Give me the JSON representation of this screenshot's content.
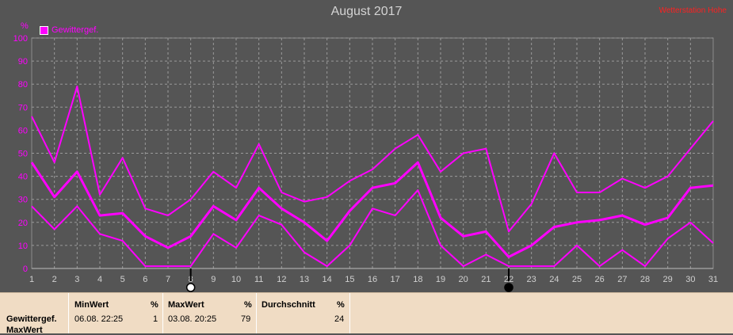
{
  "title": "August 2017",
  "corner_note": "Wetterstation Hohe",
  "legend": {
    "label": "Gewittergef.",
    "color": "#ff00ff"
  },
  "chart_data": {
    "type": "line",
    "title": "August 2017",
    "xlabel": "",
    "ylabel": "%",
    "x": [
      1,
      2,
      3,
      4,
      5,
      6,
      7,
      8,
      9,
      10,
      11,
      12,
      13,
      14,
      15,
      16,
      17,
      18,
      19,
      20,
      21,
      22,
      23,
      24,
      25,
      26,
      27,
      28,
      29,
      30,
      31
    ],
    "ylim": [
      0,
      100
    ],
    "yticks": [
      0,
      10,
      20,
      30,
      40,
      50,
      60,
      70,
      80,
      90,
      100
    ],
    "grid": true,
    "legend_position": "top-left",
    "series": [
      {
        "name": "Gewittergef.",
        "role": "max",
        "values": [
          66,
          46,
          79,
          32,
          48,
          26,
          23,
          30,
          42,
          35,
          54,
          33,
          29,
          31,
          38,
          43,
          52,
          58,
          42,
          50,
          52,
          16,
          28,
          50,
          33,
          33,
          39,
          35,
          40,
          52,
          64
        ]
      },
      {
        "name": "Gewittergef.",
        "role": "avg",
        "values": [
          46,
          31,
          42,
          23,
          24,
          14,
          9,
          14,
          27,
          21,
          35,
          26,
          20,
          12,
          25,
          35,
          37,
          46,
          22,
          14,
          16,
          5,
          10,
          18,
          20,
          21,
          23,
          19,
          22,
          35,
          36
        ]
      },
      {
        "name": "Gewittergef.",
        "role": "min",
        "values": [
          27,
          17,
          27,
          15,
          12,
          1,
          1,
          1,
          15,
          9,
          23,
          19,
          7,
          1,
          10,
          26,
          23,
          34,
          10,
          1,
          6,
          1,
          1,
          1,
          10,
          1,
          8,
          1,
          13,
          20,
          11
        ]
      }
    ],
    "moon_markers": [
      {
        "x": 8,
        "phase": "full"
      },
      {
        "x": 22,
        "phase": "new"
      }
    ]
  },
  "stats_panel": {
    "row_labels": [
      "Gewittergef.",
      "MaxWert"
    ],
    "columns": [
      {
        "header": "MinWert",
        "unit": "%",
        "value_date": "06.08.  22:25",
        "value": "1"
      },
      {
        "header": "MaxWert",
        "unit": "%",
        "value_date": "03.08.  20:25",
        "value": "79"
      },
      {
        "header": "Durchschnitt",
        "unit": "%",
        "value_date": "",
        "value": "24"
      }
    ]
  },
  "colors": {
    "background": "#555555",
    "grid": "#9a9a9a",
    "series": "#ff00ff",
    "axis_text": "#d0d0d0",
    "panel": "#f0dcc4"
  }
}
